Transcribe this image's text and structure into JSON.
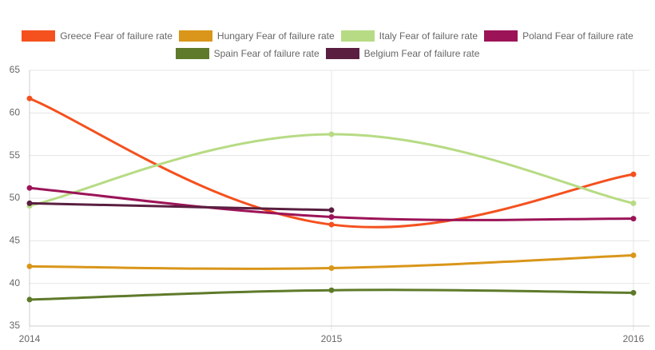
{
  "chart_data": {
    "type": "line",
    "categories": [
      "2014",
      "2015",
      "2016"
    ],
    "series": [
      {
        "name": "Greece Fear of failure rate",
        "color": "#f4511e",
        "values": [
          61.7,
          46.9,
          52.8
        ]
      },
      {
        "name": "Hungary Fear of failure rate",
        "color": "#d9961a",
        "values": [
          42.0,
          41.8,
          43.3
        ]
      },
      {
        "name": "Italy Fear of failure rate",
        "color": "#b7db84",
        "values": [
          49.1,
          57.5,
          49.4
        ]
      },
      {
        "name": "Poland Fear of failure rate",
        "color": "#9c1457",
        "values": [
          51.2,
          47.8,
          47.6
        ]
      },
      {
        "name": "Spain Fear of failure rate",
        "color": "#5e7a2a",
        "values": [
          38.1,
          39.2,
          38.9
        ]
      },
      {
        "name": "Belgium Fear of failure rate",
        "color": "#5a1f40",
        "values": [
          49.4,
          48.6,
          null
        ]
      }
    ],
    "ylim": [
      35,
      65
    ],
    "yticks": [
      35,
      40,
      45,
      50,
      55,
      60,
      65
    ],
    "grid": true,
    "legend": "top"
  }
}
